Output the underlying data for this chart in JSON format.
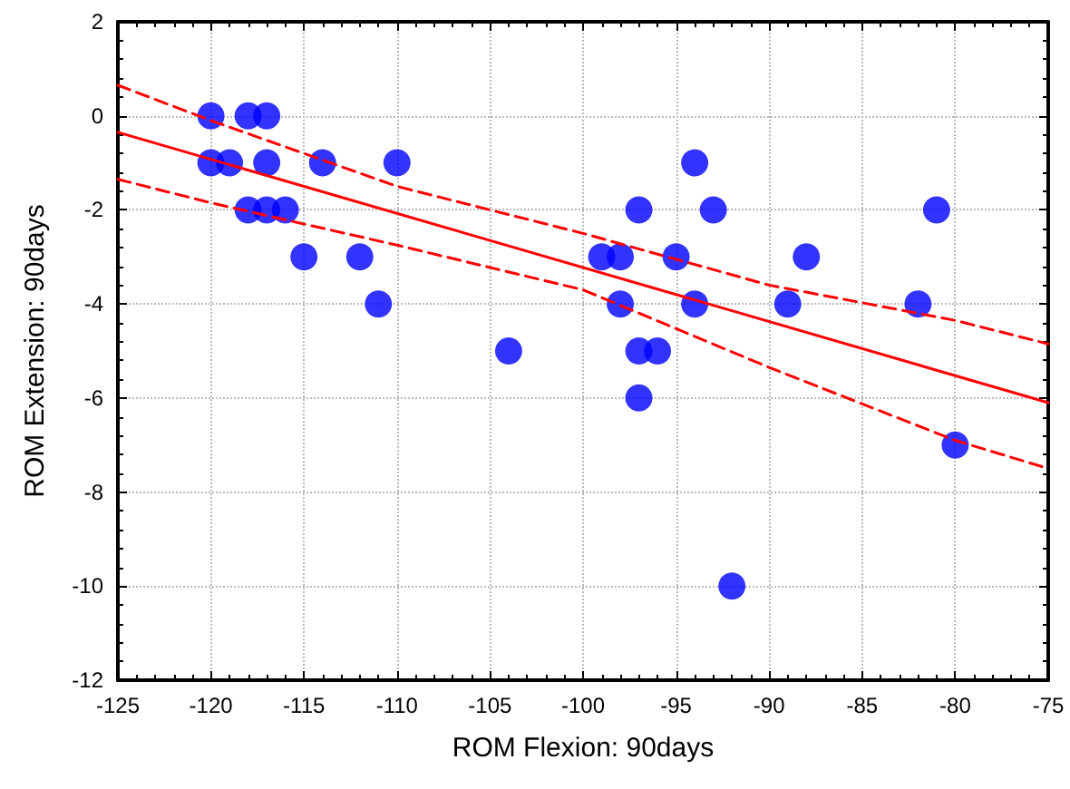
{
  "chart_data": {
    "type": "scatter",
    "xlabel": "ROM Flexion: 90days",
    "ylabel": "ROM Extension: 90days",
    "xlim": [
      -125,
      -75
    ],
    "xticks": [
      -125,
      -120,
      -115,
      -110,
      -105,
      -100,
      -95,
      -90,
      -85,
      -80,
      -75
    ],
    "ylim": [
      -12,
      2
    ],
    "yticks": [
      -12,
      -10,
      -8,
      -6,
      -4,
      -2,
      0,
      2
    ],
    "grid": true,
    "series": [
      {
        "type": "line",
        "color": "#ff0000",
        "line_style": "solid",
        "marker": "none",
        "x": [
          -125,
          -75
        ],
        "values": [
          -0.35,
          -6.1
        ]
      },
      {
        "type": "line",
        "color": "#ff0000",
        "line_style": "dashed",
        "marker": "none",
        "x": [
          -125,
          -120,
          -110,
          -100,
          -90,
          -80,
          -75
        ],
        "values": [
          0.65,
          -0.1,
          -1.5,
          -2.5,
          -3.6,
          -4.35,
          -4.85
        ]
      },
      {
        "type": "line",
        "color": "#ff0000",
        "line_style": "dashed",
        "marker": "none",
        "x": [
          -125,
          -120,
          -110,
          -100,
          -90,
          -80,
          -75
        ],
        "values": [
          -1.35,
          -1.85,
          -2.75,
          -3.7,
          -5.35,
          -6.9,
          -7.5
        ]
      },
      {
        "color": "#0000ff",
        "marker": "circle",
        "x": [
          -120,
          -118,
          -117,
          -120,
          -119,
          -117,
          -114,
          -110,
          -118,
          -117,
          -116,
          -115,
          -112,
          -111,
          -104,
          -99,
          -98,
          -98,
          -97,
          -97,
          -96,
          -97,
          -95,
          -94,
          -94,
          -93,
          -92,
          -89,
          -88,
          -82,
          -81,
          -80
        ],
        "values": [
          0,
          0,
          0,
          -1,
          -1,
          -1,
          -1,
          -1,
          -2,
          -2,
          -2,
          -3,
          -3,
          -4,
          -5,
          -3,
          -3,
          -4,
          -2,
          -5,
          -5,
          -6,
          -3,
          -1,
          -4,
          -2,
          -10,
          -4,
          -3,
          -4,
          -2,
          -7
        ]
      }
    ]
  }
}
